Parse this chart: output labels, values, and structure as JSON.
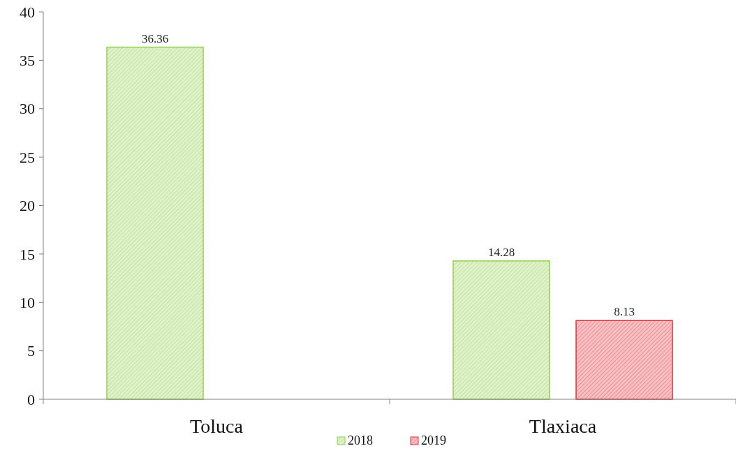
{
  "chart_data": {
    "type": "bar",
    "categories": [
      "Toluca",
      "Tlaxiaca"
    ],
    "series": [
      {
        "name": "2018",
        "color": "#92d050",
        "values": [
          36.36,
          14.28
        ]
      },
      {
        "name": "2019",
        "color": "#e0303a",
        "values": [
          null,
          8.13
        ]
      }
    ],
    "ylim": [
      0,
      40
    ],
    "yticks": [
      0,
      5,
      10,
      15,
      20,
      25,
      30,
      35,
      40
    ],
    "data_labels": true,
    "legend": "bottom",
    "grid": false
  }
}
